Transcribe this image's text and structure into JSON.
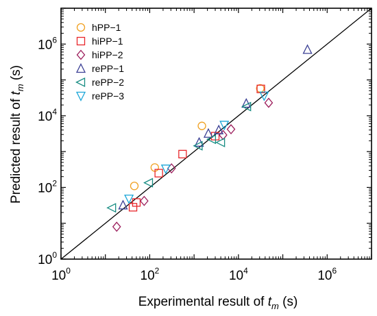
{
  "chart_data": {
    "type": "scatter",
    "title": "",
    "xlabel": {
      "prefix": "Experimental result of ",
      "var": "t",
      "sub": "m",
      "suffix": " (s)"
    },
    "ylabel": {
      "prefix": "Predicted result of ",
      "var": "t",
      "sub": "m",
      "suffix": " (s)"
    },
    "xscale": "log",
    "yscale": "log",
    "xlim": [
      1,
      10000000
    ],
    "ylim": [
      1,
      10000000
    ],
    "x_ticks": [
      {
        "value": 1,
        "base": "10",
        "exp": "0"
      },
      {
        "value": 100,
        "base": "10",
        "exp": "2"
      },
      {
        "value": 10000,
        "base": "10",
        "exp": "4"
      },
      {
        "value": 1000000,
        "base": "10",
        "exp": "6"
      }
    ],
    "y_ticks": [
      {
        "value": 1,
        "base": "10",
        "exp": "0"
      },
      {
        "value": 100,
        "base": "10",
        "exp": "2"
      },
      {
        "value": 10000,
        "base": "10",
        "exp": "4"
      },
      {
        "value": 1000000,
        "base": "10",
        "exp": "6"
      }
    ],
    "grid": false,
    "legend_position": "top-left",
    "reference_line": "y = x",
    "series": [
      {
        "name": "hPP−1",
        "marker": "circle",
        "color": "#F0A020",
        "points": [
          [
            45,
            110
          ],
          [
            130,
            360
          ],
          [
            1500,
            5200
          ],
          [
            31000,
            58000
          ]
        ]
      },
      {
        "name": "hiPP−1",
        "marker": "square",
        "color": "#E8262A",
        "points": [
          [
            42,
            28
          ],
          [
            50,
            38
          ],
          [
            160,
            250
          ],
          [
            550,
            850
          ],
          [
            3000,
            2700
          ],
          [
            32000,
            56000
          ]
        ]
      },
      {
        "name": "hiPP−2",
        "marker": "diamond",
        "color": "#9B1B5A",
        "points": [
          [
            18,
            8
          ],
          [
            75,
            42
          ],
          [
            310,
            340
          ],
          [
            4500,
            2900
          ],
          [
            6800,
            4200
          ],
          [
            48000,
            23000
          ]
        ]
      },
      {
        "name": "rePP−1",
        "marker": "triangle-up",
        "color": "#3A3F94",
        "points": [
          [
            25,
            32
          ],
          [
            1300,
            1800
          ],
          [
            2100,
            3200
          ],
          [
            3600,
            4000
          ],
          [
            15000,
            22000
          ],
          [
            360000,
            700000
          ]
        ]
      },
      {
        "name": "rePP−2",
        "marker": "triangle-left",
        "color": "#168C82",
        "points": [
          [
            14,
            27
          ],
          [
            95,
            135
          ],
          [
            1250,
            1450
          ],
          [
            2500,
            2200
          ],
          [
            4000,
            1800
          ],
          [
            15500,
            18000
          ]
        ]
      },
      {
        "name": "rePP−3",
        "marker": "triangle-down",
        "color": "#1BA6D8",
        "points": [
          [
            34,
            48
          ],
          [
            230,
            330
          ],
          [
            4800,
            5500
          ],
          [
            38000,
            36000
          ]
        ]
      }
    ]
  }
}
